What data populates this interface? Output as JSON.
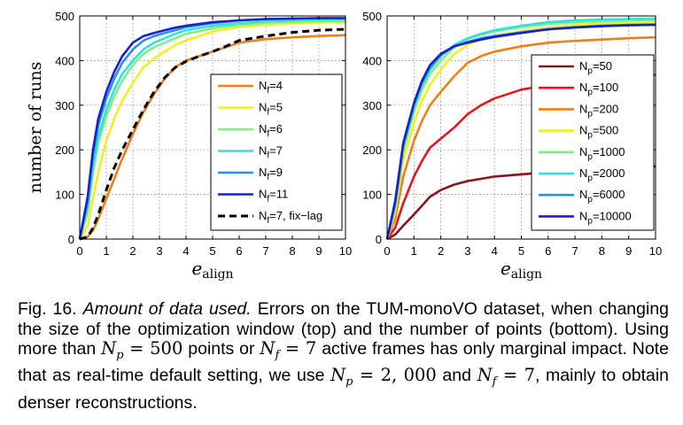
{
  "chart_data": [
    {
      "type": "line",
      "ylabel": "number of runs",
      "xlabel": "e",
      "xlabel_sub": "align",
      "xlim": [
        0,
        10
      ],
      "ylim": [
        0,
        500
      ],
      "xticks": [
        "0",
        "1",
        "2",
        "3",
        "4",
        "5",
        "6",
        "7",
        "8",
        "9",
        "10"
      ],
      "yticks": [
        "0",
        "100",
        "200",
        "300",
        "400",
        "500"
      ],
      "grid": true,
      "legend_placement": "right",
      "series": [
        {
          "label_main": "N",
          "label_sub": "f",
          "label_rest": "=4",
          "color": "#f07f1a",
          "dash": false,
          "x": [
            0,
            0.3,
            0.5,
            0.7,
            1.0,
            1.3,
            1.6,
            2.0,
            2.4,
            2.8,
            3.2,
            3.6,
            4.0,
            4.5,
            5.0,
            5.5,
            6.0,
            7.0,
            8.0,
            9.0,
            10.0
          ],
          "y": [
            0,
            5,
            20,
            45,
            90,
            135,
            180,
            235,
            285,
            325,
            360,
            385,
            400,
            410,
            420,
            430,
            440,
            448,
            452,
            455,
            457
          ]
        },
        {
          "label_main": "N",
          "label_sub": "f",
          "label_rest": "=5",
          "color": "#f0f020",
          "dash": false,
          "x": [
            0,
            0.3,
            0.5,
            0.7,
            1.0,
            1.3,
            1.6,
            2.0,
            2.4,
            2.8,
            3.2,
            3.6,
            4.0,
            4.5,
            5.0,
            6.0,
            7.0,
            8.0,
            9.0,
            10.0
          ],
          "y": [
            0,
            30,
            90,
            150,
            220,
            270,
            310,
            350,
            385,
            405,
            420,
            435,
            445,
            455,
            465,
            475,
            480,
            483,
            485,
            486
          ]
        },
        {
          "label_main": "N",
          "label_sub": "f",
          "label_rest": "=6",
          "color": "#80ee80",
          "dash": false,
          "x": [
            0,
            0.3,
            0.5,
            0.7,
            1.0,
            1.3,
            1.6,
            2.0,
            2.4,
            2.8,
            3.2,
            3.6,
            4.0,
            5.0,
            6.0,
            7.0,
            8.0,
            9.0,
            10.0
          ],
          "y": [
            0,
            60,
            150,
            215,
            275,
            320,
            355,
            390,
            415,
            430,
            440,
            450,
            460,
            472,
            480,
            485,
            487,
            488,
            489
          ]
        },
        {
          "label_main": "N",
          "label_sub": "f",
          "label_rest": "=7",
          "color": "#30e0e8",
          "dash": false,
          "x": [
            0,
            0.3,
            0.5,
            0.7,
            1.0,
            1.3,
            1.6,
            2.0,
            2.4,
            2.8,
            3.2,
            3.6,
            4.0,
            5.0,
            6.0,
            7.0,
            8.0,
            9.0,
            10.0
          ],
          "y": [
            0,
            70,
            165,
            230,
            290,
            335,
            370,
            400,
            425,
            440,
            450,
            460,
            468,
            478,
            484,
            488,
            490,
            491,
            492
          ]
        },
        {
          "label_main": "N",
          "label_sub": "f",
          "label_rest": "=9",
          "color": "#2a8ef0",
          "dash": false,
          "x": [
            0,
            0.3,
            0.5,
            0.7,
            1.0,
            1.3,
            1.6,
            2.0,
            2.4,
            2.8,
            3.2,
            3.6,
            4.0,
            5.0,
            6.0,
            7.0,
            8.0,
            9.0,
            10.0
          ],
          "y": [
            0,
            85,
            185,
            255,
            315,
            360,
            395,
            425,
            445,
            455,
            462,
            468,
            475,
            484,
            490,
            493,
            494,
            495,
            495
          ]
        },
        {
          "label_main": "N",
          "label_sub": "f",
          "label_rest": "=11",
          "color": "#1a20c8",
          "dash": false,
          "x": [
            0,
            0.3,
            0.5,
            0.7,
            1.0,
            1.3,
            1.6,
            2.0,
            2.4,
            2.8,
            3.2,
            3.6,
            4.0,
            5.0,
            6.0,
            7.0,
            8.0,
            9.0,
            10.0
          ],
          "y": [
            0,
            95,
            200,
            270,
            330,
            375,
            410,
            440,
            455,
            462,
            468,
            474,
            478,
            486,
            490,
            493,
            494,
            495,
            495
          ]
        },
        {
          "label_main": "N",
          "label_sub": "f",
          "label_rest": "=7, fix−lag",
          "color": "#000000",
          "dash": true,
          "x": [
            0,
            0.3,
            0.5,
            0.7,
            1.0,
            1.3,
            1.6,
            2.0,
            2.4,
            2.8,
            3.2,
            3.6,
            4.0,
            4.5,
            5.0,
            5.5,
            6.0,
            7.0,
            8.0,
            9.0,
            10.0
          ],
          "y": [
            0,
            5,
            25,
            55,
            110,
            160,
            200,
            245,
            290,
            330,
            362,
            385,
            398,
            410,
            420,
            432,
            445,
            455,
            463,
            468,
            470
          ]
        }
      ]
    },
    {
      "type": "line",
      "xlabel": "e",
      "xlabel_sub": "align",
      "xlim": [
        0,
        10
      ],
      "ylim": [
        0,
        500
      ],
      "xticks": [
        "0",
        "1",
        "2",
        "3",
        "4",
        "5",
        "6",
        "7",
        "8",
        "9",
        "10"
      ],
      "yticks": [
        "0",
        "100",
        "200",
        "300",
        "400",
        "500"
      ],
      "grid": true,
      "legend_placement": "right",
      "series": [
        {
          "label_main": "N",
          "label_sub": "p",
          "label_rest": "=50",
          "color": "#8b1418",
          "dash": false,
          "x": [
            0,
            0.3,
            0.6,
            1.0,
            1.3,
            1.6,
            2.0,
            2.5,
            3.0,
            4.0,
            5.0,
            6.0,
            7.0,
            8.0,
            9.0,
            10.0
          ],
          "y": [
            0,
            10,
            30,
            55,
            75,
            95,
            110,
            122,
            130,
            140,
            145,
            150,
            153,
            157,
            160,
            163
          ]
        },
        {
          "label_main": "N",
          "label_sub": "p",
          "label_rest": "=100",
          "color": "#e8141c",
          "dash": false,
          "x": [
            0,
            0.3,
            0.6,
            1.0,
            1.3,
            1.6,
            2.0,
            2.5,
            3.0,
            3.5,
            4.0,
            5.0,
            6.0,
            7.0,
            8.0,
            9.0,
            10.0
          ],
          "y": [
            0,
            25,
            80,
            140,
            175,
            205,
            225,
            250,
            280,
            300,
            315,
            335,
            345,
            352,
            358,
            363,
            368
          ]
        },
        {
          "label_main": "N",
          "label_sub": "p",
          "label_rest": "=200",
          "color": "#f07f1a",
          "dash": false,
          "x": [
            0,
            0.3,
            0.6,
            1.0,
            1.3,
            1.6,
            2.0,
            2.5,
            3.0,
            3.5,
            4.0,
            5.0,
            6.0,
            7.0,
            8.0,
            9.0,
            10.0
          ],
          "y": [
            0,
            45,
            140,
            220,
            265,
            300,
            330,
            365,
            395,
            410,
            420,
            432,
            440,
            444,
            447,
            450,
            452
          ]
        },
        {
          "label_main": "N",
          "label_sub": "p",
          "label_rest": "=500",
          "color": "#f0f020",
          "dash": false,
          "x": [
            0,
            0.3,
            0.6,
            1.0,
            1.3,
            1.6,
            2.0,
            2.5,
            3.0,
            3.5,
            4.0,
            5.0,
            6.0,
            7.0,
            8.0,
            9.0,
            10.0
          ],
          "y": [
            0,
            60,
            175,
            260,
            310,
            345,
            380,
            415,
            435,
            448,
            455,
            466,
            474,
            480,
            483,
            485,
            486
          ]
        },
        {
          "label_main": "N",
          "label_sub": "p",
          "label_rest": "=1000",
          "color": "#80ee80",
          "dash": false,
          "x": [
            0,
            0.3,
            0.6,
            1.0,
            1.3,
            1.6,
            2.0,
            2.5,
            3.0,
            3.5,
            4.0,
            5.0,
            6.0,
            7.0,
            8.0,
            9.0,
            10.0
          ],
          "y": [
            0,
            70,
            195,
            285,
            335,
            370,
            400,
            430,
            448,
            458,
            465,
            475,
            482,
            486,
            488,
            490,
            491
          ]
        },
        {
          "label_main": "N",
          "label_sub": "p",
          "label_rest": "=2000",
          "color": "#30e0e8",
          "dash": false,
          "x": [
            0,
            0.3,
            0.6,
            1.0,
            1.3,
            1.6,
            2.0,
            2.5,
            3.0,
            3.5,
            4.0,
            5.0,
            6.0,
            7.0,
            8.0,
            9.0,
            10.0
          ],
          "y": [
            0,
            75,
            205,
            295,
            345,
            380,
            410,
            435,
            450,
            460,
            468,
            478,
            486,
            490,
            492,
            493,
            494
          ]
        },
        {
          "label_main": "N",
          "label_sub": "p",
          "label_rest": "=6000",
          "color": "#2a8ef0",
          "dash": false,
          "x": [
            0,
            0.3,
            0.6,
            1.0,
            1.3,
            1.6,
            2.0,
            2.5,
            3.0,
            3.5,
            4.0,
            5.0,
            6.0,
            7.0,
            8.0,
            9.0,
            10.0
          ],
          "y": [
            0,
            80,
            210,
            300,
            350,
            385,
            412,
            432,
            442,
            450,
            455,
            463,
            470,
            475,
            478,
            480,
            481
          ]
        },
        {
          "label_main": "N",
          "label_sub": "p",
          "label_rest": "=10000",
          "color": "#1a20c8",
          "dash": false,
          "x": [
            0,
            0.3,
            0.6,
            1.0,
            1.3,
            1.6,
            2.0,
            2.5,
            3.0,
            3.5,
            4.0,
            5.0,
            6.0,
            7.0,
            8.0,
            9.0,
            10.0
          ],
          "y": [
            0,
            85,
            215,
            305,
            355,
            390,
            415,
            432,
            440,
            447,
            453,
            462,
            470,
            474,
            477,
            479,
            480
          ]
        }
      ]
    }
  ],
  "caption": {
    "fig_label": "Fig. 16.",
    "title": "Amount of data used.",
    "text_1": "Errors on the TUM-monoVO dataset, when changing the size of the optimization window (top) and the number of points (bottom). Using more than",
    "math_1": "N",
    "math_1_sub": "p",
    "math_1_rest": " = 500",
    "text_2": "points or",
    "math_2": "N",
    "math_2_sub": "f",
    "math_2_rest": " = 7",
    "text_3": "active frames has only marginal impact. Note that as real-time default setting, we use",
    "math_3": "N",
    "math_3_sub": "p",
    "math_3_rest": " = 2, 000",
    "text_4": "and",
    "math_4": "N",
    "math_4_sub": "f",
    "math_4_rest": " = 7",
    "text_5": ", mainly to obtain denser reconstructions."
  }
}
